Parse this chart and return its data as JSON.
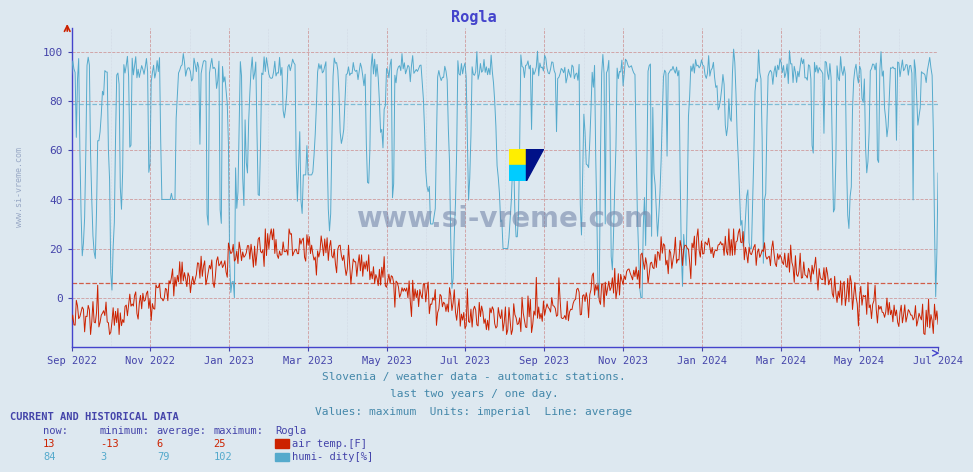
{
  "title": "Rogla",
  "title_color": "#4444cc",
  "bg_color": "#dde8f0",
  "plot_bg_color": "#dde8f0",
  "x_tick_labels": [
    "Sep 2022",
    "Nov 2022",
    "Jan 2023",
    "Mar 2023",
    "May 2023",
    "Jul 2023",
    "Sep 2023",
    "Nov 2023",
    "Jan 2024",
    "Mar 2024",
    "May 2024",
    "Jul 2024"
  ],
  "ylim": [
    -20,
    110
  ],
  "yticks": [
    0,
    20,
    40,
    60,
    80,
    100
  ],
  "grid_color_major": "#cc8888",
  "grid_color_minor": "#bbbbcc",
  "temp_color": "#cc2200",
  "humi_color": "#55aacc",
  "temp_avg": 6,
  "humi_avg": 79,
  "temp_min": -13,
  "temp_max": 25,
  "temp_now": 13,
  "humi_min": 3,
  "humi_max": 102,
  "humi_now": 84,
  "subtitle1": "Slovenia / weather data - automatic stations.",
  "subtitle2": "last two years / one day.",
  "subtitle3": "Values: maximum  Units: imperial  Line: average",
  "subtitle_color": "#4488aa",
  "table_header": "CURRENT AND HISTORICAL DATA",
  "table_color": "#4444aa",
  "col_headers": [
    "now:",
    "minimum:",
    "average:",
    "maximum:",
    "Rogla"
  ],
  "watermark": "www.si-vreme.com",
  "watermark_color": "#7788aa",
  "axis_color": "#4444cc",
  "tick_color": "#4444aa",
  "legend_box_temp": "#cc2200",
  "legend_box_humi": "#55aacc",
  "legend_text_temp": "air temp.[F]",
  "legend_text_humi": "humi- dity[%]"
}
